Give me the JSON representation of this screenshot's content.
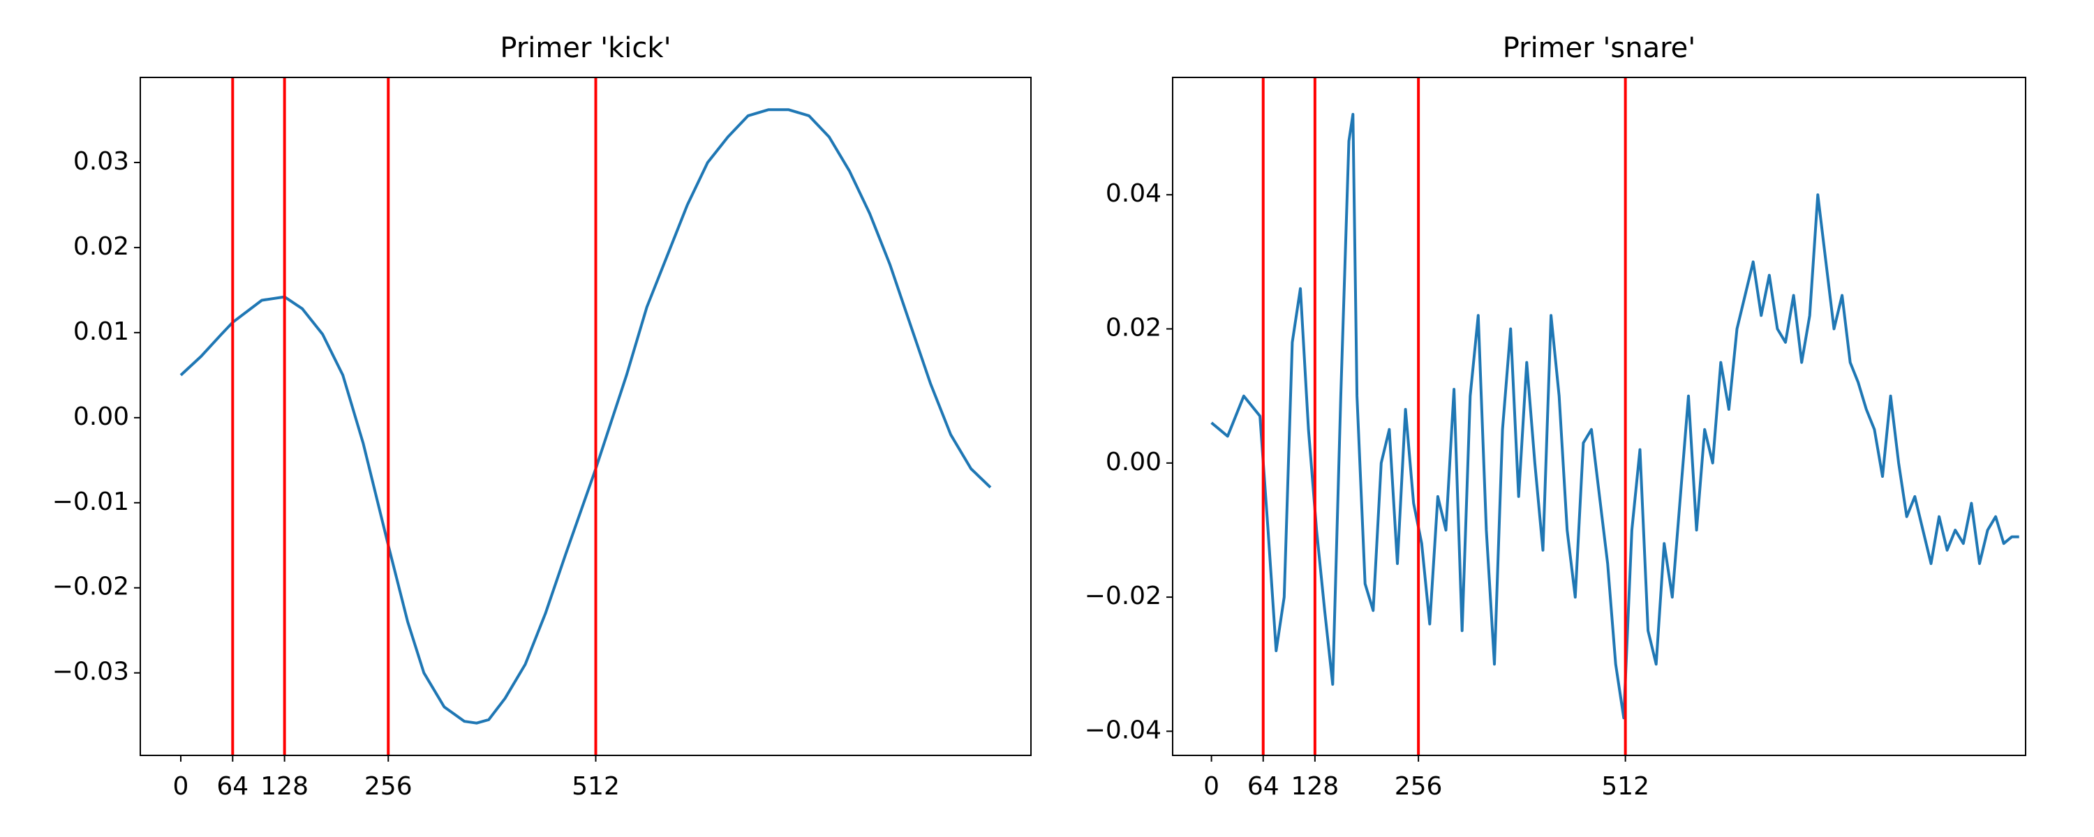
{
  "chart_data": [
    {
      "type": "line",
      "title": "Primer 'kick'",
      "color": "#1f77b4",
      "x": [
        0,
        25,
        50,
        64,
        100,
        128,
        150,
        175,
        200,
        225,
        256,
        280,
        300,
        325,
        350,
        365,
        380,
        400,
        425,
        450,
        475,
        512,
        550,
        575,
        600,
        625,
        650,
        675,
        700,
        725,
        750,
        775,
        800,
        825,
        850,
        875,
        900,
        925,
        950,
        975,
        999
      ],
      "values": [
        0.005,
        0.0072,
        0.0098,
        0.0112,
        0.0138,
        0.0142,
        0.0128,
        0.0098,
        0.005,
        -0.003,
        -0.015,
        -0.024,
        -0.03,
        -0.034,
        -0.0357,
        -0.0359,
        -0.0355,
        -0.033,
        -0.029,
        -0.023,
        -0.016,
        -0.006,
        0.005,
        0.013,
        0.019,
        0.025,
        0.03,
        0.033,
        0.0355,
        0.0362,
        0.0362,
        0.0355,
        0.033,
        0.029,
        0.024,
        0.018,
        0.011,
        0.004,
        -0.002,
        -0.006,
        -0.0082
      ],
      "vlines": [
        64,
        128,
        256,
        512
      ],
      "vline_color": "red",
      "xlim": [
        -49.95,
        1048.95
      ],
      "ylim": [
        -0.0397,
        0.04
      ],
      "xticks": [
        0,
        64,
        128,
        256,
        512
      ],
      "yticks": [
        {
          "value": -0.03,
          "label": "−0.03"
        },
        {
          "value": -0.02,
          "label": "−0.02"
        },
        {
          "value": -0.01,
          "label": "−0.01"
        },
        {
          "value": 0,
          "label": "0.00"
        },
        0.01,
        0.02,
        0.03
      ]
    },
    {
      "type": "line",
      "title": "Primer 'snare'",
      "color": "#1f77b4",
      "x": [
        0,
        20,
        40,
        60,
        70,
        80,
        90,
        100,
        110,
        120,
        130,
        140,
        150,
        160,
        170,
        175,
        180,
        190,
        200,
        210,
        220,
        230,
        240,
        250,
        260,
        270,
        280,
        290,
        300,
        310,
        320,
        330,
        340,
        350,
        360,
        370,
        380,
        390,
        400,
        410,
        420,
        430,
        440,
        450,
        460,
        470,
        480,
        490,
        500,
        510,
        520,
        530,
        540,
        550,
        560,
        570,
        580,
        590,
        600,
        610,
        620,
        630,
        640,
        650,
        660,
        670,
        680,
        690,
        700,
        710,
        720,
        730,
        740,
        750,
        760,
        770,
        780,
        790,
        800,
        810,
        820,
        830,
        840,
        850,
        860,
        870,
        880,
        890,
        900,
        910,
        920,
        930,
        940,
        950,
        960,
        970,
        980,
        990,
        999
      ],
      "values": [
        0.006,
        0.004,
        0.01,
        0.007,
        -0.01,
        -0.028,
        -0.02,
        0.018,
        0.026,
        0.005,
        -0.01,
        -0.022,
        -0.033,
        0.01,
        0.048,
        0.052,
        0.01,
        -0.018,
        -0.022,
        0,
        0.005,
        -0.015,
        0.008,
        -0.006,
        -0.012,
        -0.024,
        -0.005,
        -0.01,
        0.011,
        -0.025,
        0.01,
        0.022,
        -0.01,
        -0.03,
        0.005,
        0.02,
        -0.005,
        0.015,
        0,
        -0.013,
        0.022,
        0.01,
        -0.01,
        -0.02,
        0.003,
        0.005,
        -0.005,
        -0.015,
        -0.03,
        -0.038,
        -0.01,
        0.002,
        -0.025,
        -0.03,
        -0.012,
        -0.02,
        -0.005,
        0.01,
        -0.01,
        0.005,
        0,
        0.015,
        0.008,
        0.02,
        0.025,
        0.03,
        0.022,
        0.028,
        0.02,
        0.018,
        0.025,
        0.015,
        0.022,
        0.04,
        0.03,
        0.02,
        0.025,
        0.015,
        0.012,
        0.008,
        0.005,
        -0.002,
        0.01,
        0,
        -0.008,
        -0.005,
        -0.01,
        -0.015,
        -0.008,
        -0.013,
        -0.01,
        -0.012,
        -0.006,
        -0.015,
        -0.01,
        -0.008,
        -0.012,
        -0.011,
        -0.011
      ],
      "vlines": [
        64,
        128,
        256,
        512
      ],
      "vline_color": "red",
      "xlim": [
        -48,
        1007
      ],
      "ylim": [
        -0.0436,
        0.0575
      ],
      "xticks": [
        0,
        64,
        128,
        256,
        512
      ],
      "yticks": [
        {
          "value": -0.04,
          "label": "−0.04"
        },
        {
          "value": -0.02,
          "label": "−0.02"
        },
        {
          "value": 0,
          "label": "0.00"
        },
        0.02,
        0.04
      ]
    }
  ]
}
